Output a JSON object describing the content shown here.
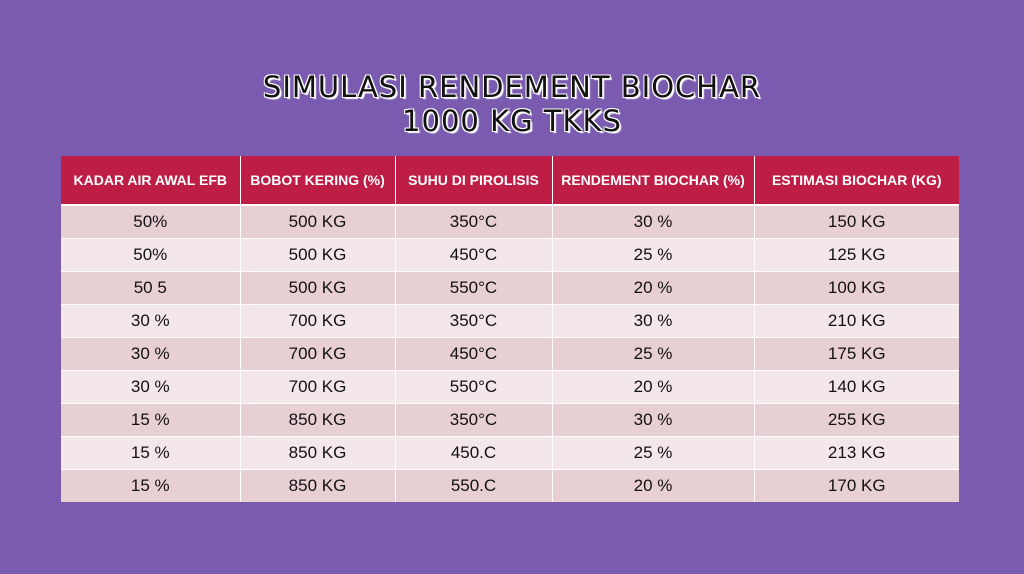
{
  "title": {
    "line1": "SIMULASI RENDEMENT BIOCHAR",
    "line2": "1000 KG TKKS"
  },
  "table": {
    "headers": [
      "KADAR AIR AWAL EFB",
      "BOBOT KERING (%)",
      "SUHU DI PIROLISIS",
      "RENDEMENT BIOCHAR (%)",
      "ESTIMASI BIOCHAR (KG)"
    ],
    "rows": [
      [
        "50%",
        "500 KG",
        "350°C",
        "30 %",
        "150 KG"
      ],
      [
        "50%",
        "500 KG",
        "450°C",
        "25 %",
        "125 KG"
      ],
      [
        "50 5",
        "500 KG",
        "550°C",
        "20 %",
        "100 KG"
      ],
      [
        "30 %",
        "700 KG",
        "350°C",
        "30 %",
        "210 KG"
      ],
      [
        "30 %",
        "700 KG",
        "450°C",
        "25 %",
        "175 KG"
      ],
      [
        "30 %",
        "700 KG",
        "550°C",
        "20 %",
        "140 KG"
      ],
      [
        "15 %",
        "850 KG",
        "350°C",
        "30 %",
        "255 KG"
      ],
      [
        "15 %",
        "850 KG",
        "450.C",
        "25 %",
        "213 KG"
      ],
      [
        "15 %",
        "850 KG",
        "550.C",
        "20 %",
        "170 KG"
      ]
    ]
  },
  "colors": {
    "background": "#7b5bb0",
    "header": "#be1e45",
    "row_odd": "#e8cfd4",
    "row_even": "#f3e7e9"
  }
}
